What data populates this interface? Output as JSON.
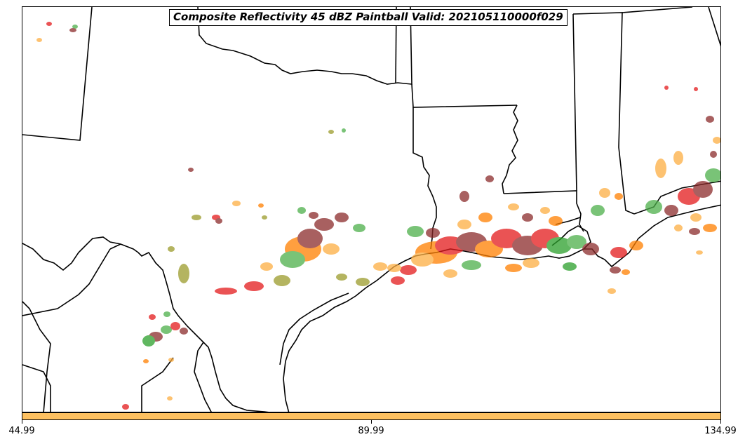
{
  "map": {
    "title": "Composite Reflectivity 45 dBZ Paintball Valid: 202105110000f029",
    "colors": {
      "border": "#000000",
      "water": "#ffffff",
      "land": "#ffffff"
    },
    "paintball_palette": [
      "#e41a1c",
      "#ff7f00",
      "#fdae42",
      "#4daf4a",
      "#2ca02c",
      "#8b2b2b",
      "#9b9b2b",
      "#d4a017"
    ]
  },
  "colorbar": {
    "color": "#fdc060",
    "ticks": [
      "44.99",
      "89.99",
      "134.99"
    ]
  }
}
